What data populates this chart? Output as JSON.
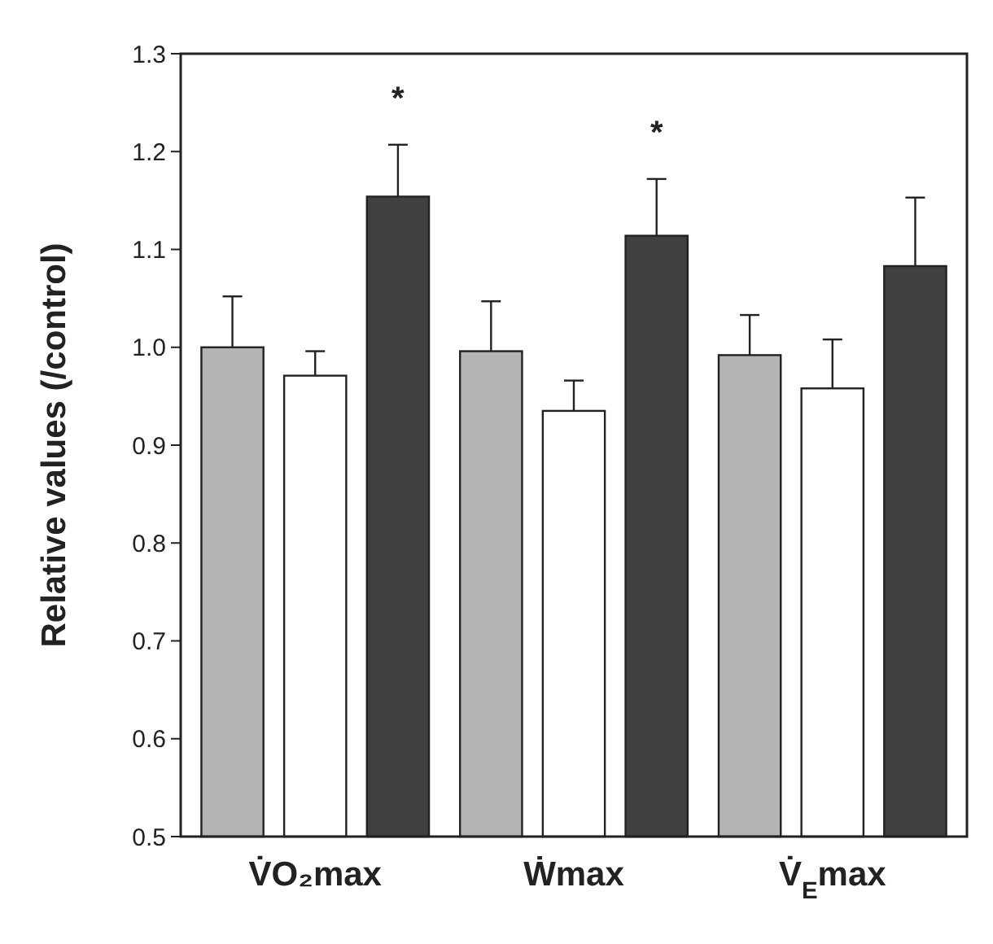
{
  "chart_data": {
    "type": "bar",
    "ylabel": "Relative values (/control)",
    "categories": [
      "V̇O₂max",
      "Ẇmax",
      "V̇$_{E}$max"
    ],
    "series": [
      {
        "color": "#b4b4b4",
        "values": [
          1.0,
          0.996,
          0.992
        ],
        "errors": [
          [
            1.0,
            1.052
          ],
          [
            0.996,
            1.047
          ],
          [
            0.992,
            1.033
          ]
        ]
      },
      {
        "color": "#ffffff",
        "values": [
          0.971,
          0.935,
          0.958
        ],
        "errors": [
          [
            0.971,
            0.996
          ],
          [
            0.935,
            0.966
          ],
          [
            0.958,
            1.008
          ]
        ]
      },
      {
        "color": "#404040",
        "values": [
          1.154,
          1.114,
          1.083
        ],
        "errors": [
          [
            1.154,
            1.207
          ],
          [
            1.114,
            1.172
          ],
          [
            1.083,
            1.153
          ]
        ]
      }
    ],
    "ylim": [
      0.5,
      1.3
    ],
    "yticks": [
      0.5,
      0.6,
      0.7,
      0.8,
      0.9,
      {
        "value": 1,
        "label": "1.0"
      },
      1.1,
      1.2,
      1.3
    ],
    "grid": false,
    "annotations": [
      "*",
      "*"
    ]
  }
}
